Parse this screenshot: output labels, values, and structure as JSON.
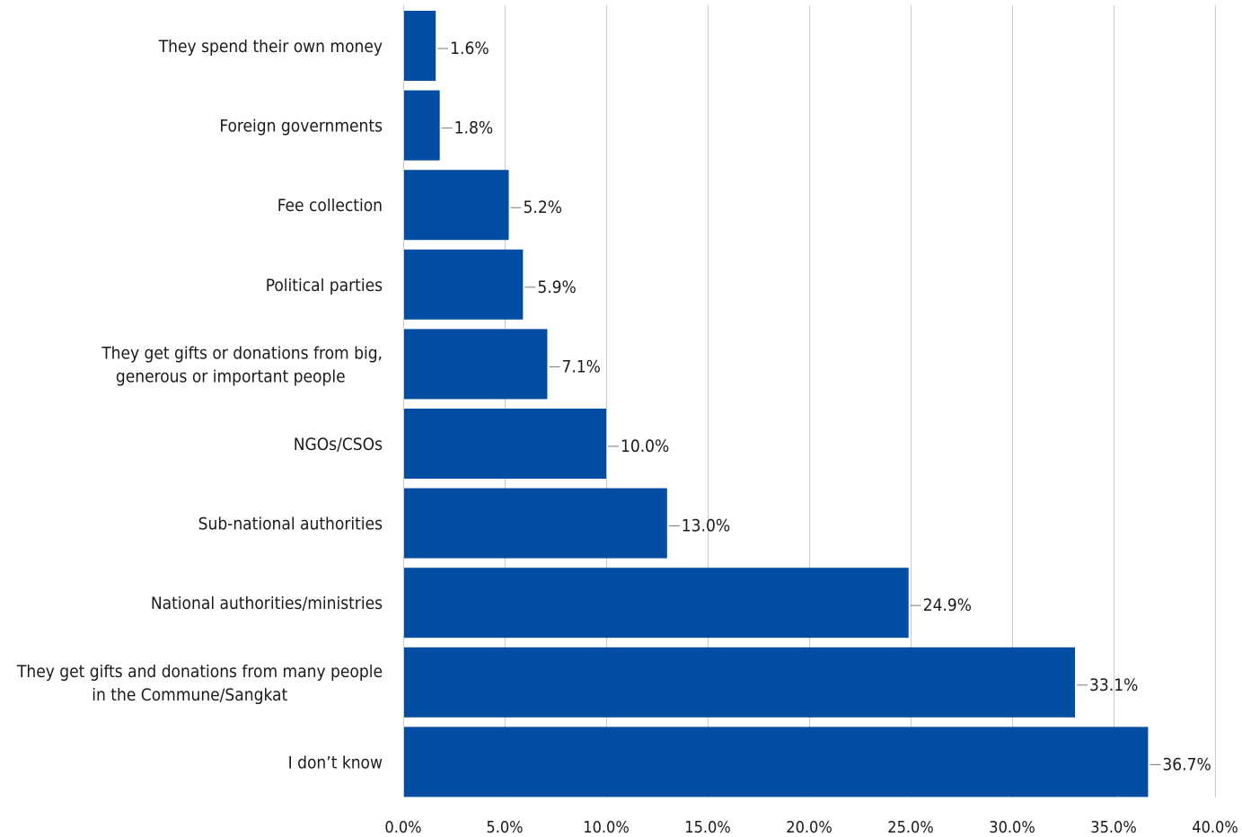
{
  "chart_data": {
    "type": "bar",
    "orientation": "horizontal",
    "categories": [
      [
        "They spend their own money"
      ],
      [
        "Foreign governments"
      ],
      [
        "Fee collection"
      ],
      [
        "Political parties"
      ],
      [
        "They get gifts or donations from big,",
        "generous or important people"
      ],
      [
        "NGOs/CSOs"
      ],
      [
        "Sub-national authorities"
      ],
      [
        "National authorities/ministries"
      ],
      [
        "They get gifts and donations from many people",
        "in the Commune/Sangkat"
      ],
      [
        "I don’t know"
      ]
    ],
    "values": [
      1.6,
      1.8,
      5.2,
      5.9,
      7.1,
      10.0,
      13.0,
      24.9,
      33.1,
      36.7
    ],
    "value_labels": [
      "1.6%",
      "1.8%",
      "5.2%",
      "5.9%",
      "7.1%",
      "10.0%",
      "13.0%",
      "24.9%",
      "33.1%",
      "36.7%"
    ],
    "xlim": [
      0,
      40
    ],
    "x_ticks": [
      0,
      5,
      10,
      15,
      20,
      25,
      30,
      35,
      40
    ],
    "x_tick_labels": [
      "0.0%",
      "5.0%",
      "10.0%",
      "15.0%",
      "20.0%",
      "25.0%",
      "30.0%",
      "35.0%",
      "40.0%"
    ],
    "grid": true,
    "title": "",
    "xlabel": "",
    "ylabel": "",
    "bar_color": "#034ea2"
  }
}
